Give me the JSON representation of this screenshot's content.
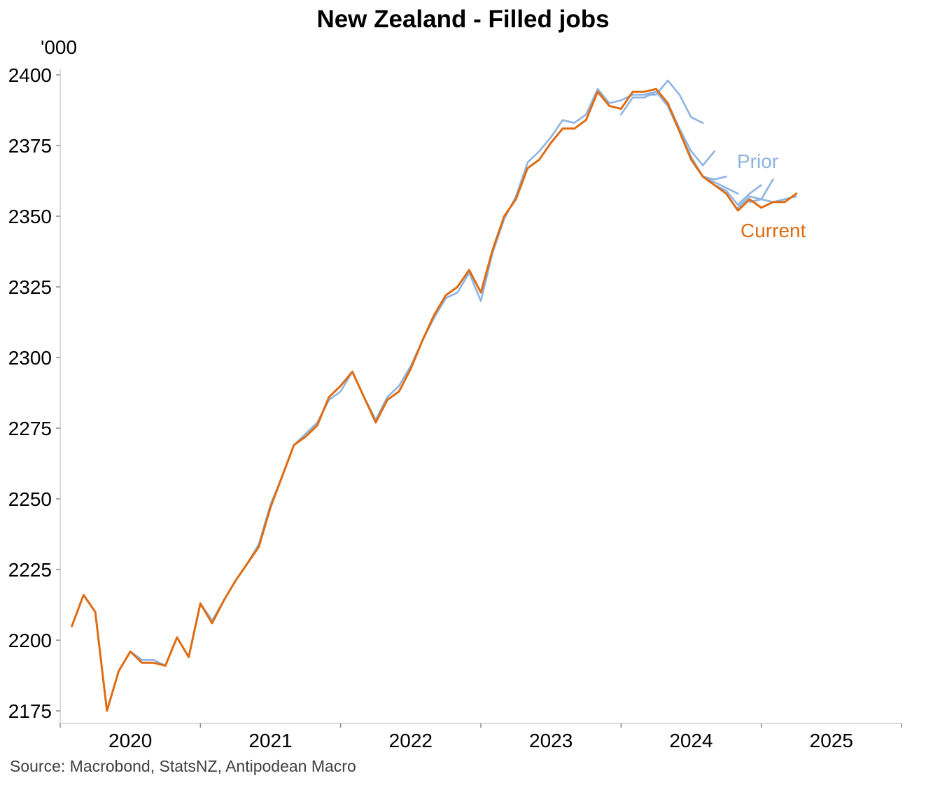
{
  "chart_data": {
    "type": "line",
    "title": "New Zealand - Filled jobs",
    "ylabel": "'000",
    "source": "Source: Macrobond, StatsNZ, Antipodean Macro",
    "ylim": [
      2172,
      2402
    ],
    "yticks": [
      2175,
      2200,
      2225,
      2250,
      2275,
      2300,
      2325,
      2350,
      2375,
      2400
    ],
    "xlim": [
      "2019-07",
      "2025-07"
    ],
    "year_labels": [
      "2020",
      "2021",
      "2022",
      "2023",
      "2024",
      "2025"
    ],
    "grid": false,
    "colors": {
      "current": "#E06C12",
      "prior": "#8DB4E2",
      "axis": "#d0d0d0"
    },
    "series": [
      {
        "name": "Prior",
        "label": "Prior",
        "vintages": [
          {
            "x": [
              "2019-08",
              "2019-09",
              "2019-10",
              "2019-11",
              "2019-12",
              "2020-01",
              "2020-02",
              "2020-03",
              "2020-04",
              "2020-05",
              "2020-06",
              "2020-07",
              "2020-08",
              "2020-09",
              "2020-10",
              "2020-11",
              "2020-12",
              "2021-01",
              "2021-02",
              "2021-03",
              "2021-04",
              "2021-05",
              "2021-06",
              "2021-07",
              "2021-08",
              "2021-09",
              "2021-10",
              "2021-11",
              "2021-12",
              "2022-01",
              "2022-02",
              "2022-03",
              "2022-04",
              "2022-05",
              "2022-06",
              "2022-07",
              "2022-08",
              "2022-09",
              "2022-10",
              "2022-11",
              "2022-12",
              "2023-01",
              "2023-02",
              "2023-03",
              "2023-04",
              "2023-05",
              "2023-06",
              "2023-07",
              "2023-08",
              "2023-09",
              "2023-10",
              "2023-11",
              "2023-12",
              "2024-01",
              "2024-02",
              "2024-03",
              "2024-04",
              "2024-05",
              "2024-06",
              "2024-07",
              "2024-08",
              "2024-09",
              "2024-10",
              "2024-11",
              "2024-12",
              "2025-01",
              "2025-02",
              "2025-03",
              "2025-04",
              "2025-05",
              "2025-06"
            ],
            "values": [
              2205,
              2216,
              2210,
              2175,
              2189,
              2196,
              2193,
              2193,
              2191,
              2201,
              2194,
              2213,
              2207,
              2214,
              2221,
              2227,
              2234,
              2248,
              2258,
              2269,
              2273,
              2277,
              2285,
              2288,
              2295,
              2286,
              2278,
              2286,
              2290,
              2297,
              2306,
              2314,
              2321,
              2323,
              2330,
              2320,
              2337,
              2349,
              2357,
              2369,
              2373,
              2378,
              2384,
              2383,
              2386,
              2395,
              2390,
              2391,
              2393,
              2393,
              2393,
              2398,
              2393,
              2385,
              2383,
              null,
              null,
              null,
              null,
              null,
              null,
              null,
              null,
              null,
              null,
              null,
              null,
              null,
              null,
              null,
              null
            ]
          },
          {
            "x": [
              "2023-07",
              "2023-08",
              "2023-09",
              "2023-10",
              "2023-11",
              "2023-12",
              "2024-01",
              "2024-02",
              "2024-03",
              "2024-04"
            ],
            "values": [
              2386,
              2392,
              2392,
              2394,
              2390,
              2381,
              2373,
              2368,
              2373,
              null
            ]
          },
          {
            "x": [
              "2023-09",
              "2023-10",
              "2023-11",
              "2023-12",
              "2024-01",
              "2024-02",
              "2024-03",
              "2024-04",
              "2024-05",
              "2024-06"
            ],
            "values": [
              2393,
              2394,
              2389,
              2380,
              2371,
              2364,
              2363,
              2364,
              null,
              null
            ]
          },
          {
            "x": [
              "2023-12",
              "2024-01",
              "2024-02",
              "2024-03",
              "2024-04",
              "2024-05",
              "2024-06",
              "2024-07"
            ],
            "values": [
              2380,
              2370,
              2364,
              2362,
              2360,
              2358,
              null,
              null
            ]
          },
          {
            "x": [
              "2024-03",
              "2024-04",
              "2024-05",
              "2024-06",
              "2024-07",
              "2024-08"
            ],
            "values": [
              2361,
              2359,
              2354,
              2358,
              2361,
              null
            ]
          },
          {
            "x": [
              "2024-05",
              "2024-06",
              "2024-07",
              "2024-08",
              "2024-09"
            ],
            "values": [
              2353,
              2357,
              2356,
              2363,
              null
            ]
          },
          {
            "x": [
              "2024-06",
              "2024-07",
              "2024-08",
              "2024-09",
              "2024-10",
              "2024-11"
            ],
            "values": [
              2355,
              2356,
              2355,
              2356,
              2357,
              null
            ]
          }
        ]
      },
      {
        "name": "Current",
        "label": "Current",
        "x": [
          "2019-08",
          "2019-09",
          "2019-10",
          "2019-11",
          "2019-12",
          "2020-01",
          "2020-02",
          "2020-03",
          "2020-04",
          "2020-05",
          "2020-06",
          "2020-07",
          "2020-08",
          "2020-09",
          "2020-10",
          "2020-11",
          "2020-12",
          "2021-01",
          "2021-02",
          "2021-03",
          "2021-04",
          "2021-05",
          "2021-06",
          "2021-07",
          "2021-08",
          "2021-09",
          "2021-10",
          "2021-11",
          "2021-12",
          "2022-01",
          "2022-02",
          "2022-03",
          "2022-04",
          "2022-05",
          "2022-06",
          "2022-07",
          "2022-08",
          "2022-09",
          "2022-10",
          "2022-11",
          "2022-12",
          "2023-01",
          "2023-02",
          "2023-03",
          "2023-04",
          "2023-05",
          "2023-06",
          "2023-07",
          "2023-08",
          "2023-09",
          "2023-10",
          "2023-11",
          "2023-12",
          "2024-01",
          "2024-02",
          "2024-03",
          "2024-04",
          "2024-05",
          "2024-06",
          "2024-07",
          "2024-08",
          "2024-09",
          "2024-10",
          "2024-11",
          "2024-12",
          "2025-01",
          "2025-02",
          "2025-03",
          "2025-04",
          "2025-05",
          "2025-06"
        ],
        "values": [
          2205,
          2216,
          2210,
          2175,
          2189,
          2196,
          2192,
          2192,
          2191,
          2201,
          2194,
          2213,
          2206,
          2214,
          2221,
          2227,
          2233,
          2247,
          2258,
          2269,
          2272,
          2276,
          2286,
          2290,
          2295,
          2286,
          2277,
          2285,
          2288,
          2296,
          2306,
          2315,
          2322,
          2325,
          2331,
          2323,
          2338,
          2350,
          2356,
          2367,
          2370,
          2376,
          2381,
          2381,
          2384,
          2394,
          2389,
          2388,
          2394,
          2394,
          2395,
          2390,
          2380,
          2370,
          2364,
          2361,
          2358,
          2352,
          2356,
          2353,
          2355,
          2355,
          2358,
          null,
          null,
          null,
          null,
          null,
          null,
          null,
          null
        ]
      }
    ]
  }
}
